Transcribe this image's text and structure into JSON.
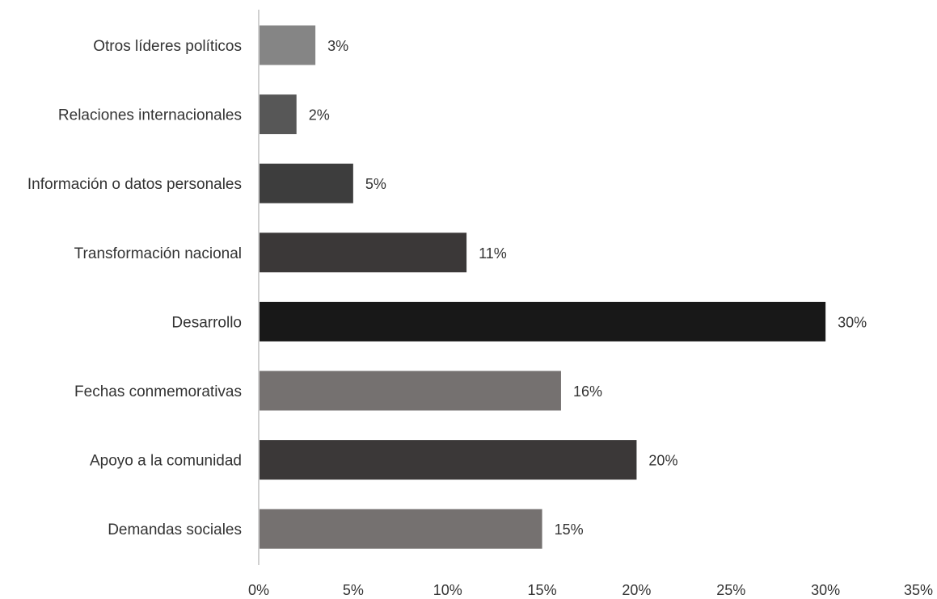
{
  "chart_data": {
    "type": "bar",
    "orientation": "horizontal",
    "categories": [
      "Otros líderes políticos",
      "Relaciones internacionales",
      "Información o datos personales",
      "Transformación nacional",
      "Desarrollo",
      "Fechas conmemorativas",
      "Apoyo a la comunidad",
      "Demandas sociales"
    ],
    "values": [
      3,
      2,
      5,
      11,
      30,
      16,
      20,
      15
    ],
    "value_labels": [
      "3%",
      "2%",
      "5%",
      "11%",
      "30%",
      "16%",
      "20%",
      "15%"
    ],
    "bar_colors": [
      "#858585",
      "#575757",
      "#3d3d3d",
      "#3b3838",
      "#181818",
      "#757170",
      "#3b3838",
      "#757170"
    ],
    "xlim": [
      0,
      35
    ],
    "xticks": [
      0,
      5,
      10,
      15,
      20,
      25,
      30,
      35
    ],
    "xtick_labels": [
      "0%",
      "5%",
      "10%",
      "15%",
      "20%",
      "25%",
      "30%",
      "35%"
    ],
    "title": "",
    "xlabel": "",
    "ylabel": "",
    "grid": false,
    "legend": "none"
  }
}
